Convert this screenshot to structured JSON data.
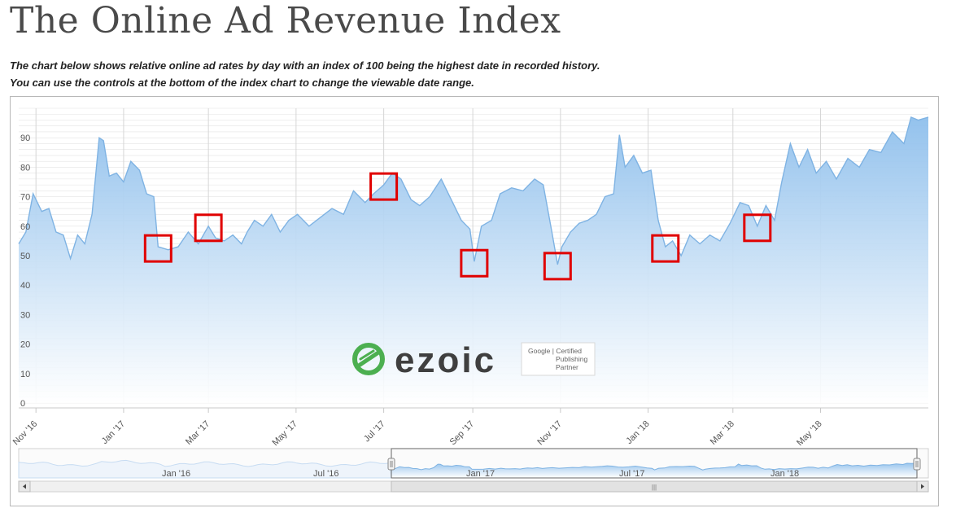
{
  "page": {
    "title": "The Online Ad Revenue Index",
    "subtitle_line1": "The chart below shows relative online ad rates by day with an index of 100 being the highest date in recorded history.",
    "subtitle_line2": "You can use the controls at the bottom of the index chart to change the viewable date range."
  },
  "logo": {
    "brand": "ezoic",
    "badge_line1": "Google | Certified",
    "badge_line2": "Publishing",
    "badge_line3": "Partner"
  },
  "navigator": {
    "labels": [
      "Jan '16",
      "Jul '16",
      "Jan '17",
      "Jul '17",
      "Jan '18"
    ],
    "scroll_grip": "|||"
  },
  "colors": {
    "line": "#7fb3e3",
    "fill_top": "#8ebfec",
    "fill_bottom": "#ffffff",
    "highlight": "#e00000",
    "grid": "#e3e3e3"
  },
  "chart_data": {
    "type": "area",
    "y_ticks": [
      0,
      10,
      20,
      30,
      40,
      50,
      60,
      70,
      80,
      90
    ],
    "ylim": [
      0,
      100
    ],
    "x_ticks": [
      "Nov '16",
      "Jan '17",
      "Mar '17",
      "May '17",
      "Jul '17",
      "Sep '17",
      "Nov '17",
      "Jan '18",
      "Mar '18",
      "May '18"
    ],
    "x_range": [
      "2016-10-20",
      "2018-07-15"
    ],
    "grid": true,
    "series": [
      {
        "values": [
          [
            "2016-10-20",
            54
          ],
          [
            "2016-10-25",
            58
          ],
          [
            "2016-10-30",
            71
          ],
          [
            "2016-11-05",
            65
          ],
          [
            "2016-11-10",
            66
          ],
          [
            "2016-11-15",
            58
          ],
          [
            "2016-11-20",
            57
          ],
          [
            "2016-11-25",
            49
          ],
          [
            "2016-11-30",
            57
          ],
          [
            "2016-12-05",
            54
          ],
          [
            "2016-12-10",
            64
          ],
          [
            "2016-12-15",
            90
          ],
          [
            "2016-12-18",
            89
          ],
          [
            "2016-12-22",
            77
          ],
          [
            "2016-12-27",
            78
          ],
          [
            "2017-01-01",
            75
          ],
          [
            "2017-01-06",
            82
          ],
          [
            "2017-01-12",
            79
          ],
          [
            "2017-01-17",
            71
          ],
          [
            "2017-01-22",
            70
          ],
          [
            "2017-01-25",
            53
          ],
          [
            "2017-02-01",
            52
          ],
          [
            "2017-02-08",
            53
          ],
          [
            "2017-02-15",
            58
          ],
          [
            "2017-02-22",
            54
          ],
          [
            "2017-03-01",
            60
          ],
          [
            "2017-03-06",
            56
          ],
          [
            "2017-03-12",
            55
          ],
          [
            "2017-03-18",
            57
          ],
          [
            "2017-03-24",
            54
          ],
          [
            "2017-03-28",
            58
          ],
          [
            "2017-04-02",
            62
          ],
          [
            "2017-04-08",
            60
          ],
          [
            "2017-04-14",
            64
          ],
          [
            "2017-04-20",
            58
          ],
          [
            "2017-04-26",
            62
          ],
          [
            "2017-05-02",
            64
          ],
          [
            "2017-05-10",
            60
          ],
          [
            "2017-05-18",
            63
          ],
          [
            "2017-05-26",
            66
          ],
          [
            "2017-06-03",
            64
          ],
          [
            "2017-06-10",
            72
          ],
          [
            "2017-06-18",
            68
          ],
          [
            "2017-06-24",
            71
          ],
          [
            "2017-07-01",
            74
          ],
          [
            "2017-07-07",
            78
          ],
          [
            "2017-07-13",
            76
          ],
          [
            "2017-07-20",
            69
          ],
          [
            "2017-07-26",
            67
          ],
          [
            "2017-08-02",
            70
          ],
          [
            "2017-08-10",
            76
          ],
          [
            "2017-08-18",
            68
          ],
          [
            "2017-08-24",
            62
          ],
          [
            "2017-08-30",
            59
          ],
          [
            "2017-09-02",
            48
          ],
          [
            "2017-09-07",
            60
          ],
          [
            "2017-09-14",
            62
          ],
          [
            "2017-09-20",
            71
          ],
          [
            "2017-09-28",
            73
          ],
          [
            "2017-10-06",
            72
          ],
          [
            "2017-10-14",
            76
          ],
          [
            "2017-10-20",
            74
          ],
          [
            "2017-10-26",
            58
          ],
          [
            "2017-10-30",
            47
          ],
          [
            "2017-11-02",
            53
          ],
          [
            "2017-11-08",
            58
          ],
          [
            "2017-11-14",
            61
          ],
          [
            "2017-11-20",
            62
          ],
          [
            "2017-11-26",
            64
          ],
          [
            "2017-12-02",
            70
          ],
          [
            "2017-12-08",
            71
          ],
          [
            "2017-12-12",
            91
          ],
          [
            "2017-12-16",
            80
          ],
          [
            "2017-12-22",
            84
          ],
          [
            "2017-12-28",
            78
          ],
          [
            "2018-01-03",
            79
          ],
          [
            "2018-01-08",
            62
          ],
          [
            "2018-01-13",
            53
          ],
          [
            "2018-01-18",
            55
          ],
          [
            "2018-01-24",
            50
          ],
          [
            "2018-01-30",
            57
          ],
          [
            "2018-02-06",
            54
          ],
          [
            "2018-02-13",
            57
          ],
          [
            "2018-02-20",
            55
          ],
          [
            "2018-02-27",
            61
          ],
          [
            "2018-03-06",
            68
          ],
          [
            "2018-03-12",
            67
          ],
          [
            "2018-03-18",
            60
          ],
          [
            "2018-03-24",
            67
          ],
          [
            "2018-03-30",
            62
          ],
          [
            "2018-04-04",
            75
          ],
          [
            "2018-04-10",
            88
          ],
          [
            "2018-04-16",
            80
          ],
          [
            "2018-04-22",
            86
          ],
          [
            "2018-04-28",
            78
          ],
          [
            "2018-05-05",
            82
          ],
          [
            "2018-05-12",
            76
          ],
          [
            "2018-05-20",
            83
          ],
          [
            "2018-05-28",
            80
          ],
          [
            "2018-06-04",
            86
          ],
          [
            "2018-06-12",
            85
          ],
          [
            "2018-06-20",
            92
          ],
          [
            "2018-06-28",
            88
          ],
          [
            "2018-07-03",
            97
          ],
          [
            "2018-07-08",
            96
          ],
          [
            "2018-07-15",
            97
          ]
        ]
      }
    ],
    "highlighted_dips": [
      "2017-01-25",
      "2017-03-01",
      "2017-07-01",
      "2017-09-02",
      "2017-10-30",
      "2018-01-13",
      "2018-03-18"
    ]
  }
}
